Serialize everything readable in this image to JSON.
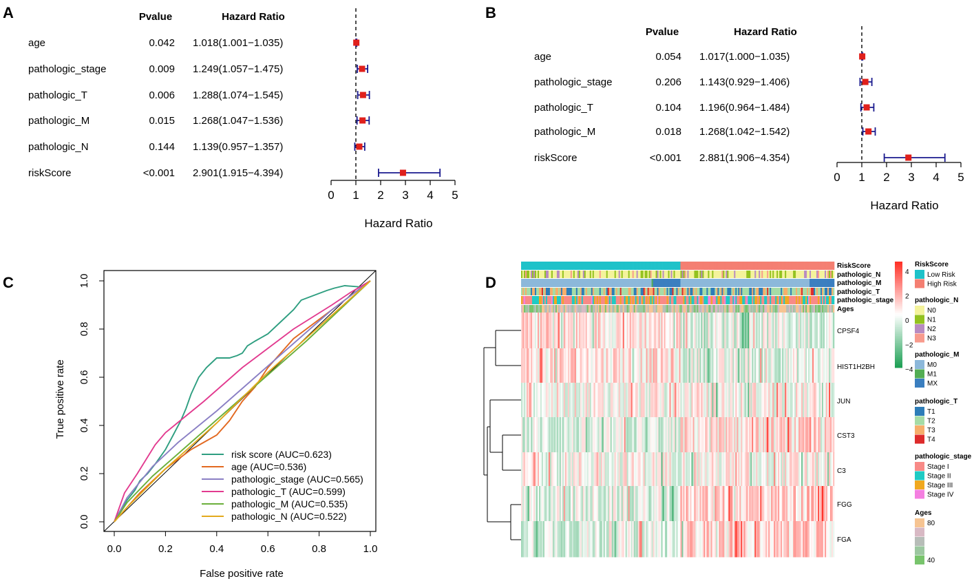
{
  "panels": {
    "a": "A",
    "b": "B",
    "c": "C",
    "d": "D"
  },
  "chart_data": [
    {
      "type": "forest",
      "panel": "A",
      "header_p": "Pvalue",
      "header_hr": "Hazard Ratio",
      "xlabel": "Hazard Ratio",
      "xlim": [
        0,
        5
      ],
      "xticks": [
        "0",
        "1",
        "2",
        "3",
        "4",
        "5"
      ],
      "reference": 1,
      "rows": [
        {
          "name": "age",
          "p": "0.042",
          "hr_text": "1.018(1.001−1.035)",
          "hr": 1.018,
          "lo": 1.001,
          "hi": 1.035
        },
        {
          "name": "pathologic_stage",
          "p": "0.009",
          "hr_text": "1.249(1.057−1.475)",
          "hr": 1.249,
          "lo": 1.057,
          "hi": 1.475
        },
        {
          "name": "pathologic_T",
          "p": "0.006",
          "hr_text": "1.288(1.074−1.545)",
          "hr": 1.288,
          "lo": 1.074,
          "hi": 1.545
        },
        {
          "name": "pathologic_M",
          "p": "0.015",
          "hr_text": "1.268(1.047−1.536)",
          "hr": 1.268,
          "lo": 1.047,
          "hi": 1.536
        },
        {
          "name": "pathologic_N",
          "p": "0.144",
          "hr_text": "1.139(0.957−1.357)",
          "hr": 1.139,
          "lo": 0.957,
          "hi": 1.357
        },
        {
          "name": "riskScore",
          "p": "<0.001",
          "hr_text": "2.901(1.915−4.394)",
          "hr": 2.901,
          "lo": 1.915,
          "hi": 4.394
        }
      ]
    },
    {
      "type": "forest",
      "panel": "B",
      "header_p": "Pvalue",
      "header_hr": "Hazard Ratio",
      "xlabel": "Hazard Ratio",
      "xlim": [
        0,
        5
      ],
      "xticks": [
        "0",
        "1",
        "2",
        "3",
        "4",
        "5"
      ],
      "reference": 1,
      "rows": [
        {
          "name": "age",
          "p": "0.054",
          "hr_text": "1.017(1.000−1.035)",
          "hr": 1.017,
          "lo": 1.0,
          "hi": 1.035
        },
        {
          "name": "pathologic_stage",
          "p": "0.206",
          "hr_text": "1.143(0.929−1.406)",
          "hr": 1.143,
          "lo": 0.929,
          "hi": 1.406
        },
        {
          "name": "pathologic_T",
          "p": "0.104",
          "hr_text": "1.196(0.964−1.484)",
          "hr": 1.196,
          "lo": 0.964,
          "hi": 1.484
        },
        {
          "name": "pathologic_M",
          "p": "0.018",
          "hr_text": "1.268(1.042−1.542)",
          "hr": 1.268,
          "lo": 1.042,
          "hi": 1.542
        },
        {
          "name": "riskScore",
          "p": "<0.001",
          "hr_text": "2.881(1.906−4.354)",
          "hr": 2.881,
          "lo": 1.906,
          "hi": 4.354
        }
      ]
    },
    {
      "type": "line",
      "panel": "C",
      "xlabel": "False positive rate",
      "ylabel": "True positive rate",
      "xlim": [
        0,
        1
      ],
      "ylim": [
        0,
        1
      ],
      "xticks": [
        "0.0",
        "0.2",
        "0.4",
        "0.6",
        "0.8",
        "1.0"
      ],
      "yticks": [
        "0.0",
        "0.2",
        "0.4",
        "0.6",
        "0.8",
        "1.0"
      ],
      "series": [
        {
          "name": "risk score (AUC=0.623)",
          "color": "#2e9e80",
          "points": [
            [
              0,
              0
            ],
            [
              0.02,
              0.04
            ],
            [
              0.05,
              0.09
            ],
            [
              0.08,
              0.13
            ],
            [
              0.1,
              0.17
            ],
            [
              0.13,
              0.2
            ],
            [
              0.16,
              0.24
            ],
            [
              0.2,
              0.3
            ],
            [
              0.23,
              0.36
            ],
            [
              0.26,
              0.42
            ],
            [
              0.28,
              0.47
            ],
            [
              0.3,
              0.53
            ],
            [
              0.33,
              0.6
            ],
            [
              0.36,
              0.64
            ],
            [
              0.38,
              0.66
            ],
            [
              0.4,
              0.68
            ],
            [
              0.45,
              0.68
            ],
            [
              0.48,
              0.69
            ],
            [
              0.5,
              0.7
            ],
            [
              0.52,
              0.73
            ],
            [
              0.55,
              0.75
            ],
            [
              0.6,
              0.78
            ],
            [
              0.65,
              0.83
            ],
            [
              0.7,
              0.88
            ],
            [
              0.73,
              0.92
            ],
            [
              0.78,
              0.94
            ],
            [
              0.83,
              0.96
            ],
            [
              0.86,
              0.97
            ],
            [
              0.9,
              0.98
            ],
            [
              0.96,
              0.975
            ],
            [
              1,
              1
            ]
          ]
        },
        {
          "name": "age (AUC=0.536)",
          "color": "#e2681f",
          "points": [
            [
              0,
              0
            ],
            [
              0.05,
              0.06
            ],
            [
              0.1,
              0.12
            ],
            [
              0.15,
              0.17
            ],
            [
              0.2,
              0.22
            ],
            [
              0.25,
              0.26
            ],
            [
              0.3,
              0.3
            ],
            [
              0.35,
              0.33
            ],
            [
              0.4,
              0.36
            ],
            [
              0.45,
              0.42
            ],
            [
              0.5,
              0.5
            ],
            [
              0.55,
              0.56
            ],
            [
              0.6,
              0.64
            ],
            [
              0.65,
              0.7
            ],
            [
              0.7,
              0.76
            ],
            [
              0.75,
              0.8
            ],
            [
              0.8,
              0.84
            ],
            [
              0.85,
              0.88
            ],
            [
              0.9,
              0.92
            ],
            [
              0.95,
              0.96
            ],
            [
              1,
              1
            ]
          ]
        },
        {
          "name": "pathologic_stage (AUC=0.565)",
          "color": "#8a7fc4",
          "points": [
            [
              0,
              0
            ],
            [
              0.05,
              0.1
            ],
            [
              0.15,
              0.23
            ],
            [
              0.25,
              0.33
            ],
            [
              0.4,
              0.46
            ],
            [
              0.55,
              0.6
            ],
            [
              0.7,
              0.74
            ],
            [
              0.85,
              0.88
            ],
            [
              1,
              1
            ]
          ]
        },
        {
          "name": "pathologic_T (AUC=0.599)",
          "color": "#e23a8f",
          "points": [
            [
              0,
              0
            ],
            [
              0.04,
              0.12
            ],
            [
              0.09,
              0.2
            ],
            [
              0.16,
              0.32
            ],
            [
              0.2,
              0.37
            ],
            [
              0.35,
              0.5
            ],
            [
              0.5,
              0.64
            ],
            [
              0.7,
              0.8
            ],
            [
              0.85,
              0.9
            ],
            [
              0.92,
              0.95
            ],
            [
              1,
              1
            ]
          ]
        },
        {
          "name": "pathologic_M (AUC=0.535)",
          "color": "#6aaf3a",
          "points": [
            [
              0,
              0
            ],
            [
              0.05,
              0.08
            ],
            [
              0.15,
              0.19
            ],
            [
              0.3,
              0.33
            ],
            [
              0.45,
              0.47
            ],
            [
              0.6,
              0.61
            ],
            [
              0.75,
              0.75
            ],
            [
              0.9,
              0.9
            ],
            [
              1,
              1
            ]
          ]
        },
        {
          "name": "pathologic_N (AUC=0.522)",
          "color": "#e3a91c",
          "points": [
            [
              0,
              0
            ],
            [
              0.05,
              0.06
            ],
            [
              0.2,
              0.22
            ],
            [
              0.4,
              0.41
            ],
            [
              0.6,
              0.62
            ],
            [
              0.8,
              0.81
            ],
            [
              1,
              1
            ]
          ]
        }
      ]
    },
    {
      "type": "heatmap",
      "panel": "D",
      "annotation_rows": [
        "RiskScore",
        "pathologic_N",
        "pathologic_M",
        "pathologic_T",
        "pathologic_stage",
        "Ages"
      ],
      "genes": [
        "CPSF4",
        "HIST1H2BH",
        "JUN",
        "CST3",
        "C3",
        "FGG",
        "FGA"
      ],
      "colorbar_ticks": [
        "4",
        "2",
        "0",
        "−2",
        "−4"
      ],
      "colorbar_range": [
        -4,
        4
      ],
      "groups": [
        "Low Risk",
        "High Risk"
      ],
      "low_risk_fraction": 0.51,
      "gene_patterns": {
        "CPSF4": "high-in-low",
        "HIST1H2BH": "high-in-low",
        "JUN": "mixed",
        "CST3": "low-in-low",
        "C3": "mixed",
        "FGG": "high-in-high",
        "FGA": "high-in-high"
      },
      "legend": [
        {
          "title": "RiskScore",
          "items": [
            {
              "label": "Low Risk",
              "color": "#1ec2c9"
            },
            {
              "label": "High Risk",
              "color": "#f47f72"
            }
          ]
        },
        {
          "title": "pathologic_N",
          "items": [
            {
              "label": "N0",
              "color": "#f4f39b"
            },
            {
              "label": "N1",
              "color": "#93c21f"
            },
            {
              "label": "N2",
              "color": "#b88bc1"
            },
            {
              "label": "N3",
              "color": "#f89b8d"
            }
          ]
        },
        {
          "title": "pathologic_M",
          "items": [
            {
              "label": "M0",
              "color": "#8cb8da"
            },
            {
              "label": "M1",
              "color": "#52ad53"
            },
            {
              "label": "MX",
              "color": "#3a7ebf"
            }
          ]
        },
        {
          "title": "pathologic_T",
          "items": [
            {
              "label": "T1",
              "color": "#2d7db8"
            },
            {
              "label": "T2",
              "color": "#a6dca6"
            },
            {
              "label": "T3",
              "color": "#f6ae6b"
            },
            {
              "label": "T4",
              "color": "#dd2b2b"
            }
          ]
        },
        {
          "title": "pathologic_stage",
          "items": [
            {
              "label": "Stage I",
              "color": "#f88a87"
            },
            {
              "label": "Stage II",
              "color": "#1fcbc4"
            },
            {
              "label": "Stage III",
              "color": "#f0a81f"
            },
            {
              "label": "Stage IV",
              "color": "#f47fe0"
            }
          ]
        },
        {
          "title": "Ages",
          "items": [
            {
              "label": "80",
              "color": "#f6c492"
            },
            {
              "label": "",
              "color": "#d8b9c4"
            },
            {
              "label": "",
              "color": "#b7bdb8"
            },
            {
              "label": "",
              "color": "#9cc7a0"
            },
            {
              "label": "40",
              "color": "#78c46c"
            }
          ]
        }
      ]
    }
  ]
}
